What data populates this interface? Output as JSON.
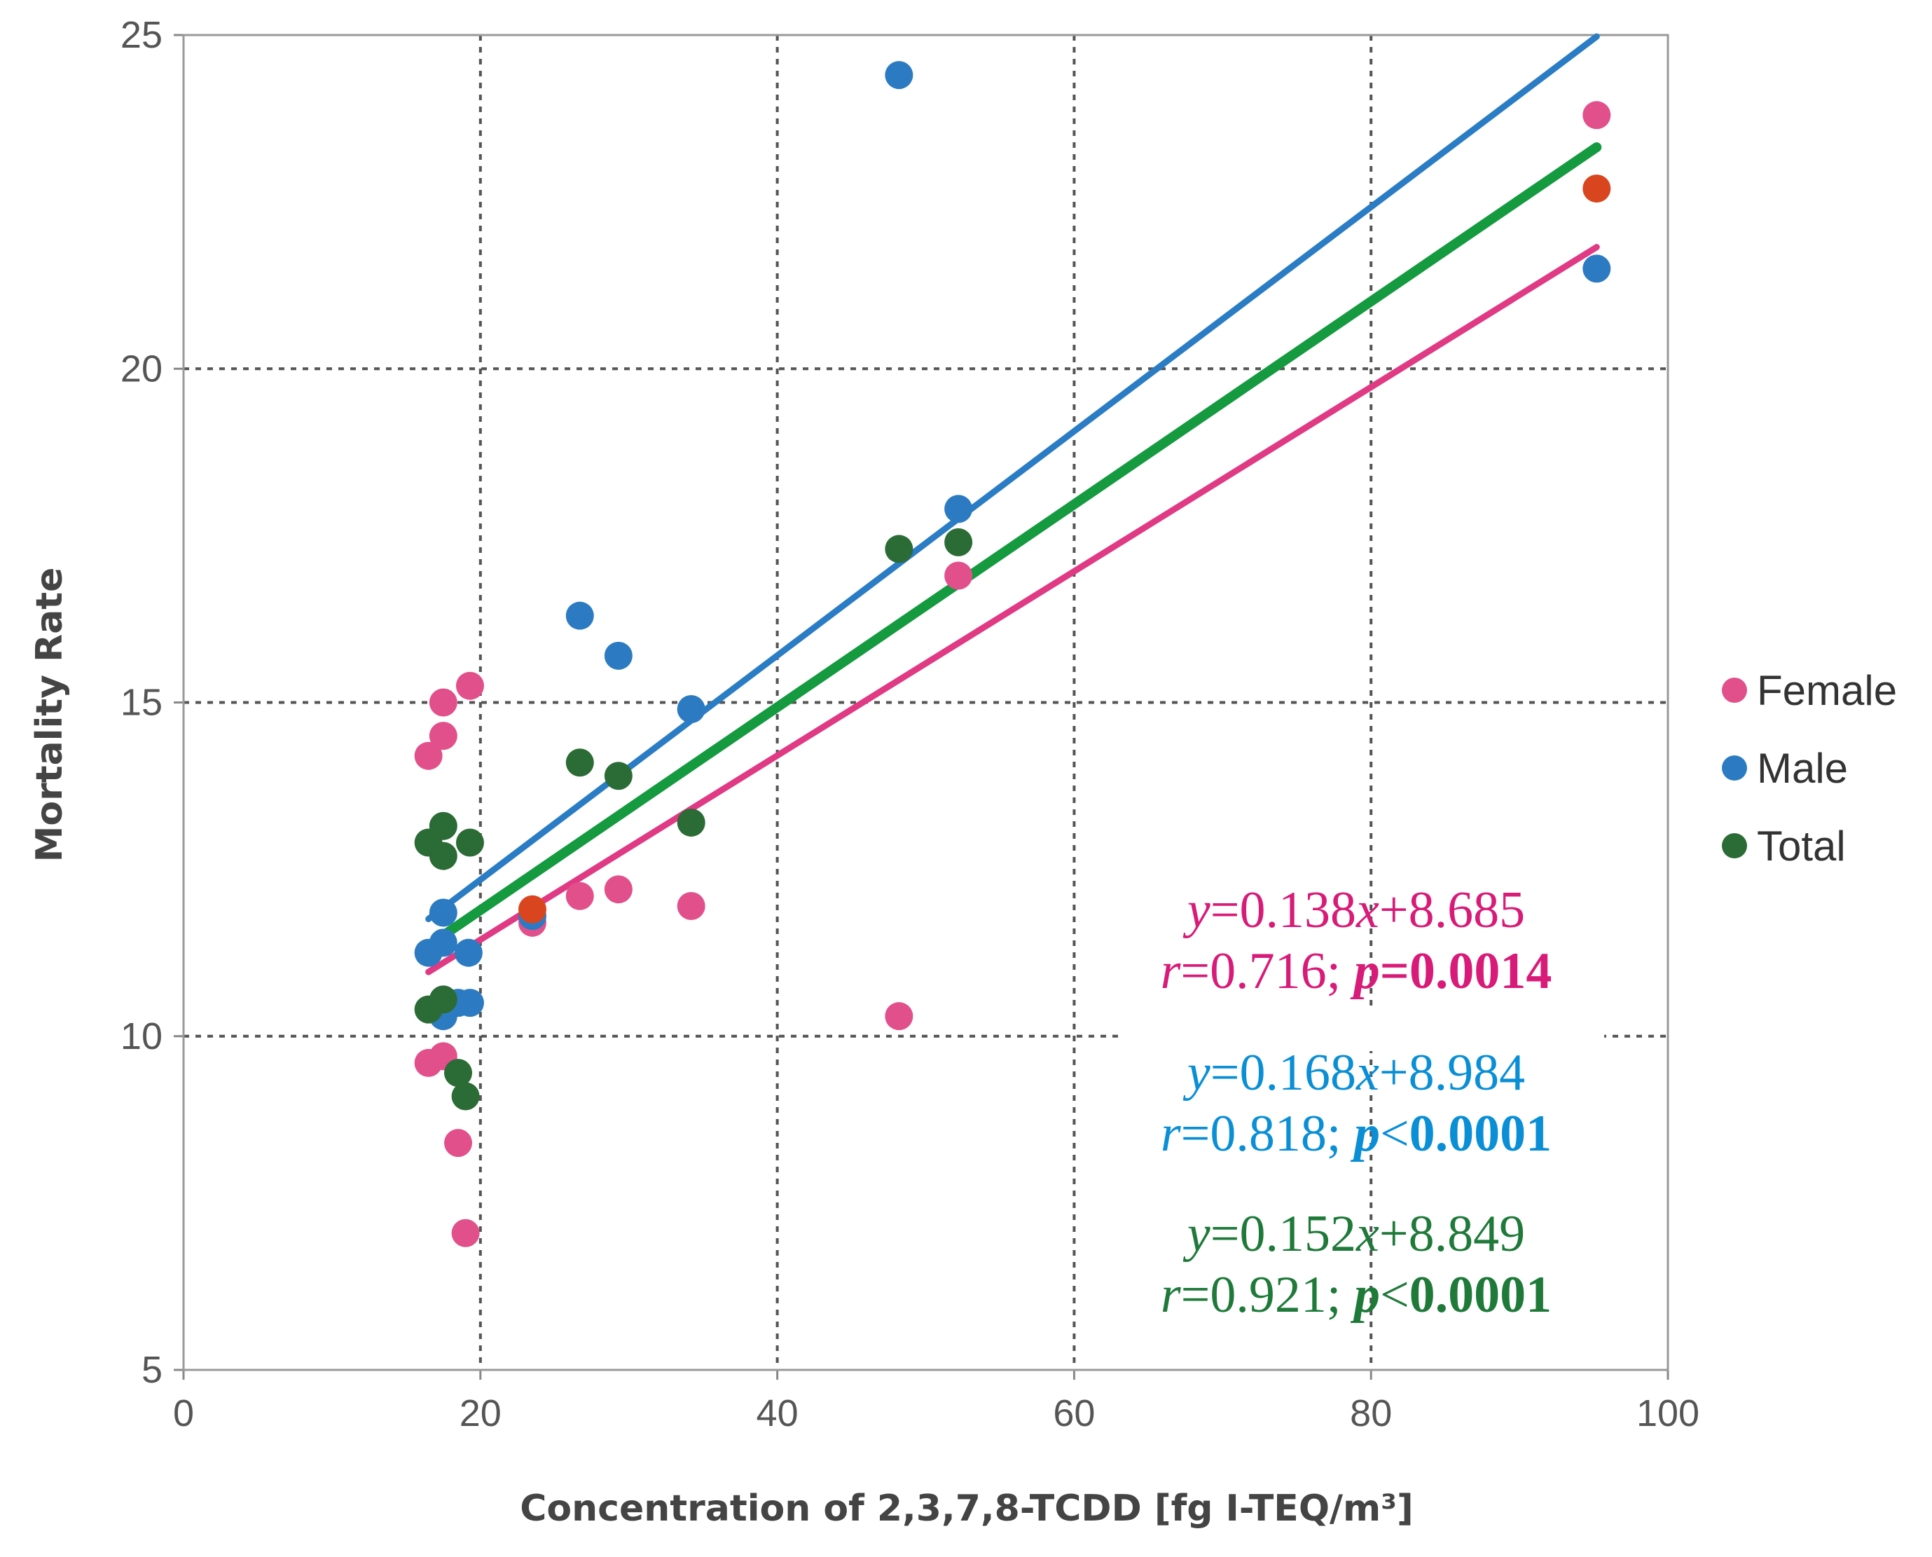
{
  "chart_data": {
    "type": "scatter",
    "title": "",
    "xlabel": "Concentration of 2,3,7,8-TCDD [fg I-TEQ/m³]",
    "ylabel": "Mortality Rate",
    "xlim": [
      0,
      100
    ],
    "ylim": [
      5,
      25
    ],
    "xticks": [
      0,
      20,
      40,
      60,
      80,
      100
    ],
    "yticks": [
      5,
      10,
      15,
      20,
      25
    ],
    "xtick_labels": [
      "0",
      "20",
      "40",
      "60",
      "80",
      "100"
    ],
    "ytick_labels": [
      "5",
      "10",
      "15",
      "20",
      "25"
    ],
    "grid": true,
    "legend_placement": "right",
    "highlight_color": "#d9451f",
    "series": [
      {
        "name": "Female",
        "color": "#e2508c",
        "line_color": "#e03a85",
        "x": [
          16.5,
          17.5,
          17.5,
          19.3,
          16.5,
          17.5,
          18.5,
          19.0,
          23.5,
          26.7,
          29.3,
          34.2,
          48.2,
          52.2,
          95.2
        ],
        "y": [
          14.2,
          15.0,
          14.5,
          15.25,
          9.6,
          9.7,
          8.4,
          7.05,
          11.7,
          12.1,
          12.2,
          11.95,
          10.3,
          16.9,
          23.8
        ],
        "fit": {
          "slope": 0.138,
          "intercept": 8.685,
          "x_range": [
            16.5,
            95.2
          ]
        }
      },
      {
        "name": "Male",
        "color": "#2c7bc2",
        "line_color": "#2a7cc4",
        "x": [
          17.5,
          16.5,
          17.5,
          19.2,
          17.5,
          18.5,
          19.3,
          23.5,
          26.7,
          29.3,
          34.2,
          48.2,
          52.2,
          95.2
        ],
        "y": [
          11.85,
          11.25,
          11.4,
          11.25,
          10.3,
          10.5,
          10.5,
          11.8,
          16.3,
          15.7,
          14.9,
          24.4,
          17.9,
          21.5
        ],
        "fit": {
          "slope": 0.168,
          "intercept": 8.984,
          "x_range": [
            16.5,
            95.2
          ]
        }
      },
      {
        "name": "Total",
        "color": "#2b6b35",
        "line_color": "#159a40",
        "x": [
          16.5,
          17.5,
          17.5,
          19.3,
          16.5,
          17.5,
          18.5,
          19.0,
          23.5,
          26.7,
          29.3,
          34.2,
          48.2,
          52.2,
          95.2
        ],
        "y": [
          12.9,
          13.15,
          12.7,
          12.9,
          10.4,
          10.55,
          9.45,
          9.1,
          11.9,
          14.1,
          13.9,
          13.2,
          17.3,
          17.4,
          22.7
        ],
        "highlighted": [
          8,
          14
        ],
        "fit": {
          "slope": 0.152,
          "intercept": 8.849,
          "x_range": [
            16.5,
            95.2
          ]
        }
      }
    ],
    "annotations": [
      {
        "color": "#d81b78",
        "lines": [
          [
            {
              "t": "y",
              "i": true
            },
            {
              "t": "=0.138"
            },
            {
              "t": "x",
              "i": true
            },
            {
              "t": "+8.685"
            }
          ],
          [
            {
              "t": "r",
              "i": true
            },
            {
              "t": "=0.716; "
            },
            {
              "t": "p",
              "i": true,
              "b": true
            },
            {
              "t": "=0.0014",
              "b": true
            }
          ]
        ]
      },
      {
        "color": "#0a8fd6",
        "lines": [
          [
            {
              "t": "y",
              "i": true
            },
            {
              "t": "=0.168"
            },
            {
              "t": "x",
              "i": true
            },
            {
              "t": "+8.984"
            }
          ],
          [
            {
              "t": "r",
              "i": true
            },
            {
              "t": "=0.818; "
            },
            {
              "t": "p",
              "i": true,
              "b": true
            },
            {
              "t": "<"
            },
            {
              "t": "0.0001",
              "b": true
            }
          ]
        ]
      },
      {
        "color": "#1f7a3a",
        "lines": [
          [
            {
              "t": "y",
              "i": true
            },
            {
              "t": "=0.152"
            },
            {
              "t": "x",
              "i": true
            },
            {
              "t": "+8.849"
            }
          ],
          [
            {
              "t": "r",
              "i": true
            },
            {
              "t": "=0.921; "
            },
            {
              "t": "p",
              "i": true,
              "b": true
            },
            {
              "t": "<"
            },
            {
              "t": "0.0001",
              "b": true
            }
          ]
        ]
      }
    ]
  }
}
